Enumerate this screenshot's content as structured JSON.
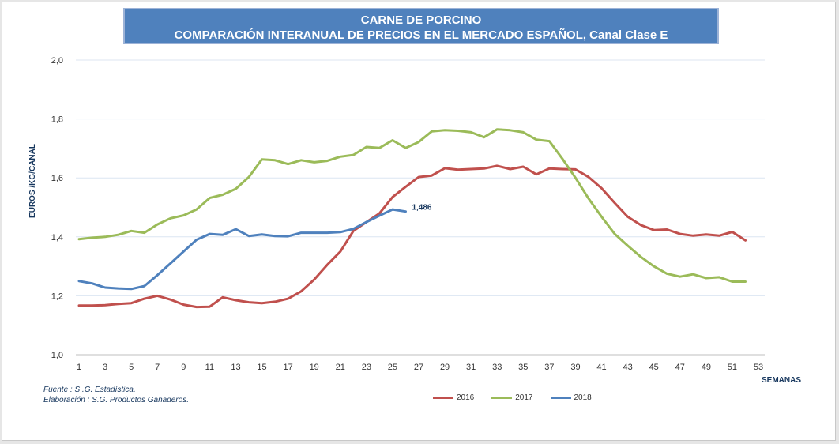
{
  "header": {
    "title_line1": "CARNE DE PORCINO",
    "title_line2": "COMPARACIÓN INTERANUAL DE PRECIOS EN EL MERCADO ESPAÑOL, Canal Clase E"
  },
  "footer": {
    "source": "Fuente :  S .G. Estadística.",
    "elaboration": "Elaboración : S.G. Productos Ganaderos."
  },
  "chart_data": {
    "type": "line",
    "title": "CARNE DE PORCINO",
    "subtitle": "COMPARACIÓN INTERANUAL DE PRECIOS EN EL MERCADO ESPAÑOL, Canal Clase E",
    "xlabel": "SEMANAS",
    "ylabel": "EUROS /KG/CANAL",
    "xlim": [
      1,
      53
    ],
    "ylim": [
      1.0,
      2.0
    ],
    "x_ticks": [
      1,
      3,
      5,
      7,
      9,
      11,
      13,
      15,
      17,
      19,
      21,
      23,
      25,
      27,
      29,
      31,
      33,
      35,
      37,
      39,
      41,
      43,
      45,
      47,
      49,
      51,
      53
    ],
    "y_ticks": [
      "1,0",
      "1,2",
      "1,4",
      "1,6",
      "1,8",
      "2,0"
    ],
    "y_tick_values": [
      1.0,
      1.2,
      1.4,
      1.6,
      1.8,
      2.0
    ],
    "grid": true,
    "legend_position": "bottom",
    "series": [
      {
        "name": "2016",
        "color": "#c0504d",
        "x": [
          1,
          2,
          3,
          4,
          5,
          6,
          7,
          8,
          9,
          10,
          11,
          12,
          13,
          14,
          15,
          16,
          17,
          18,
          19,
          20,
          21,
          22,
          23,
          24,
          25,
          26,
          27,
          28,
          29,
          30,
          31,
          32,
          33,
          34,
          35,
          36,
          37,
          38,
          39,
          40,
          41,
          42,
          43,
          44,
          45,
          46,
          47,
          48,
          49,
          50,
          51,
          52
        ],
        "values": [
          1.167,
          1.167,
          1.168,
          1.172,
          1.175,
          1.19,
          1.2,
          1.187,
          1.17,
          1.162,
          1.163,
          1.195,
          1.185,
          1.178,
          1.175,
          1.18,
          1.19,
          1.215,
          1.255,
          1.305,
          1.35,
          1.42,
          1.45,
          1.48,
          1.535,
          1.57,
          1.603,
          1.608,
          1.633,
          1.628,
          1.63,
          1.632,
          1.641,
          1.63,
          1.638,
          1.612,
          1.632,
          1.63,
          1.629,
          1.603,
          1.565,
          1.515,
          1.468,
          1.44,
          1.423,
          1.425,
          1.41,
          1.404,
          1.408,
          1.404,
          1.417,
          1.388
        ]
      },
      {
        "name": "2017",
        "color": "#9bbb59",
        "x": [
          1,
          2,
          3,
          4,
          5,
          6,
          7,
          8,
          9,
          10,
          11,
          12,
          13,
          14,
          15,
          16,
          17,
          18,
          19,
          20,
          21,
          22,
          23,
          24,
          25,
          26,
          27,
          28,
          29,
          30,
          31,
          32,
          33,
          34,
          35,
          36,
          37,
          38,
          39,
          40,
          41,
          42,
          43,
          44,
          45,
          46,
          47,
          48,
          49,
          50,
          51,
          52
        ],
        "values": [
          1.392,
          1.397,
          1.4,
          1.407,
          1.42,
          1.414,
          1.442,
          1.463,
          1.473,
          1.493,
          1.532,
          1.543,
          1.563,
          1.603,
          1.663,
          1.66,
          1.647,
          1.66,
          1.653,
          1.658,
          1.672,
          1.678,
          1.705,
          1.702,
          1.728,
          1.702,
          1.722,
          1.758,
          1.762,
          1.76,
          1.755,
          1.738,
          1.765,
          1.762,
          1.755,
          1.73,
          1.725,
          1.665,
          1.6,
          1.53,
          1.468,
          1.41,
          1.37,
          1.332,
          1.3,
          1.275,
          1.265,
          1.273,
          1.26,
          1.263,
          1.248,
          1.248
        ]
      },
      {
        "name": "2018",
        "color": "#4f81bd",
        "x": [
          1,
          2,
          3,
          4,
          5,
          6,
          7,
          8,
          9,
          10,
          11,
          12,
          13,
          14,
          15,
          16,
          17,
          18,
          19,
          20,
          21,
          22,
          23,
          24,
          25,
          26
        ],
        "values": [
          1.25,
          1.242,
          1.228,
          1.225,
          1.223,
          1.233,
          1.27,
          1.31,
          1.35,
          1.39,
          1.41,
          1.407,
          1.426,
          1.403,
          1.408,
          1.403,
          1.402,
          1.414,
          1.414,
          1.414,
          1.416,
          1.427,
          1.45,
          1.472,
          1.493,
          1.486
        ]
      }
    ],
    "annotations": [
      {
        "series": "2018",
        "x": 26,
        "y": 1.486,
        "label": "1,486"
      }
    ]
  }
}
